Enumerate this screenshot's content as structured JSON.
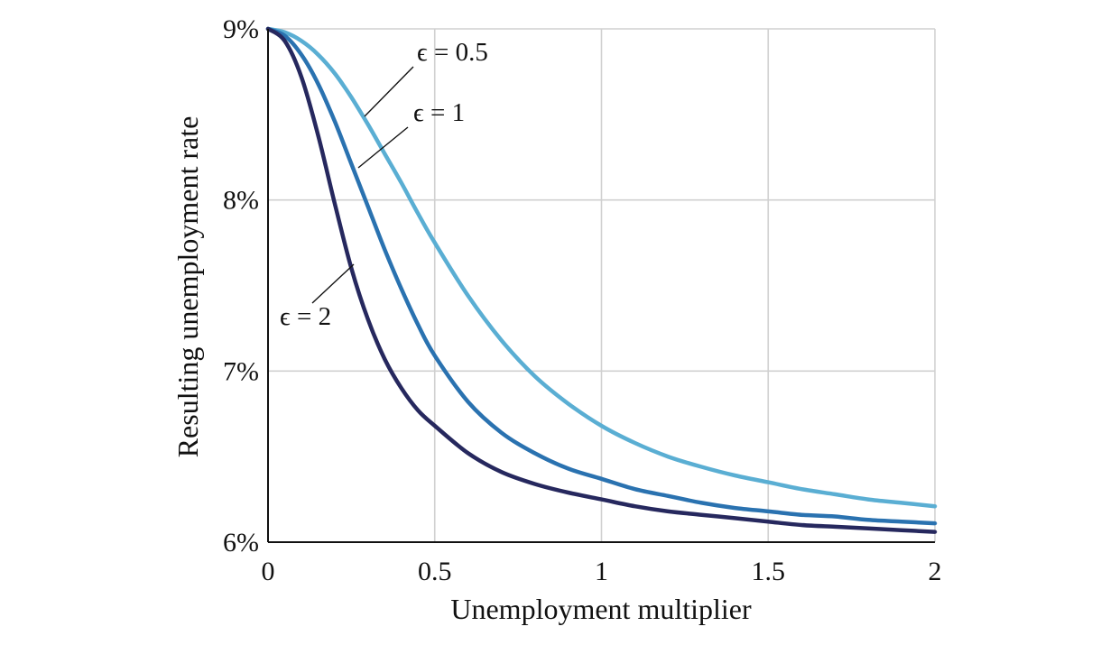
{
  "chart_data": {
    "type": "line",
    "title": "",
    "xlabel": "Unemployment multiplier",
    "ylabel": "Resulting unemployment rate",
    "xlim": [
      0,
      2
    ],
    "ylim": [
      6,
      9
    ],
    "x_ticks": [
      {
        "value": 0,
        "label": "0"
      },
      {
        "value": 0.5,
        "label": "0.5"
      },
      {
        "value": 1,
        "label": "1"
      },
      {
        "value": 1.5,
        "label": "1.5"
      },
      {
        "value": 2,
        "label": "2"
      }
    ],
    "y_ticks": [
      {
        "value": 6,
        "label": "6%"
      },
      {
        "value": 7,
        "label": "7%"
      },
      {
        "value": 8,
        "label": "8%"
      },
      {
        "value": 9,
        "label": "9%"
      }
    ],
    "grid": true,
    "legend": "none",
    "series": [
      {
        "name": "ϵ = 0.5",
        "color": "#5aaed3",
        "x": [
          0,
          0.05,
          0.1,
          0.15,
          0.2,
          0.25,
          0.3,
          0.35,
          0.4,
          0.45,
          0.5,
          0.6,
          0.7,
          0.8,
          0.9,
          1.0,
          1.1,
          1.2,
          1.3,
          1.4,
          1.5,
          1.6,
          1.7,
          1.8,
          1.9,
          2.0
        ],
        "y": [
          9.0,
          8.98,
          8.93,
          8.85,
          8.74,
          8.6,
          8.44,
          8.27,
          8.1,
          7.92,
          7.75,
          7.44,
          7.18,
          6.97,
          6.81,
          6.68,
          6.58,
          6.5,
          6.44,
          6.39,
          6.35,
          6.31,
          6.28,
          6.25,
          6.23,
          6.21
        ]
      },
      {
        "name": "ϵ = 1",
        "color": "#2a72b0",
        "x": [
          0,
          0.05,
          0.1,
          0.15,
          0.2,
          0.25,
          0.3,
          0.35,
          0.4,
          0.45,
          0.5,
          0.6,
          0.7,
          0.8,
          0.9,
          1.0,
          1.1,
          1.2,
          1.3,
          1.4,
          1.5,
          1.6,
          1.7,
          1.8,
          1.9,
          2.0
        ],
        "y": [
          9.0,
          8.96,
          8.85,
          8.68,
          8.46,
          8.21,
          7.96,
          7.71,
          7.48,
          7.27,
          7.09,
          6.82,
          6.64,
          6.52,
          6.43,
          6.37,
          6.31,
          6.27,
          6.23,
          6.2,
          6.18,
          6.16,
          6.15,
          6.13,
          6.12,
          6.11
        ]
      },
      {
        "name": "ϵ = 2",
        "color": "#26285e",
        "x": [
          0,
          0.05,
          0.1,
          0.15,
          0.2,
          0.25,
          0.3,
          0.35,
          0.4,
          0.45,
          0.5,
          0.6,
          0.7,
          0.8,
          0.9,
          1.0,
          1.1,
          1.2,
          1.3,
          1.4,
          1.5,
          1.6,
          1.7,
          1.8,
          1.9,
          2.0
        ],
        "y": [
          9.0,
          8.93,
          8.72,
          8.38,
          7.98,
          7.6,
          7.3,
          7.07,
          6.9,
          6.77,
          6.68,
          6.52,
          6.41,
          6.34,
          6.29,
          6.25,
          6.21,
          6.18,
          6.16,
          6.14,
          6.12,
          6.1,
          6.09,
          6.08,
          6.07,
          6.06
        ]
      }
    ],
    "annotations": [
      {
        "text": "ϵ = 0.5",
        "series": "ϵ = 0.5"
      },
      {
        "text": "ϵ = 1",
        "series": "ϵ = 1"
      },
      {
        "text": "ϵ = 2",
        "series": "ϵ = 2"
      }
    ]
  }
}
